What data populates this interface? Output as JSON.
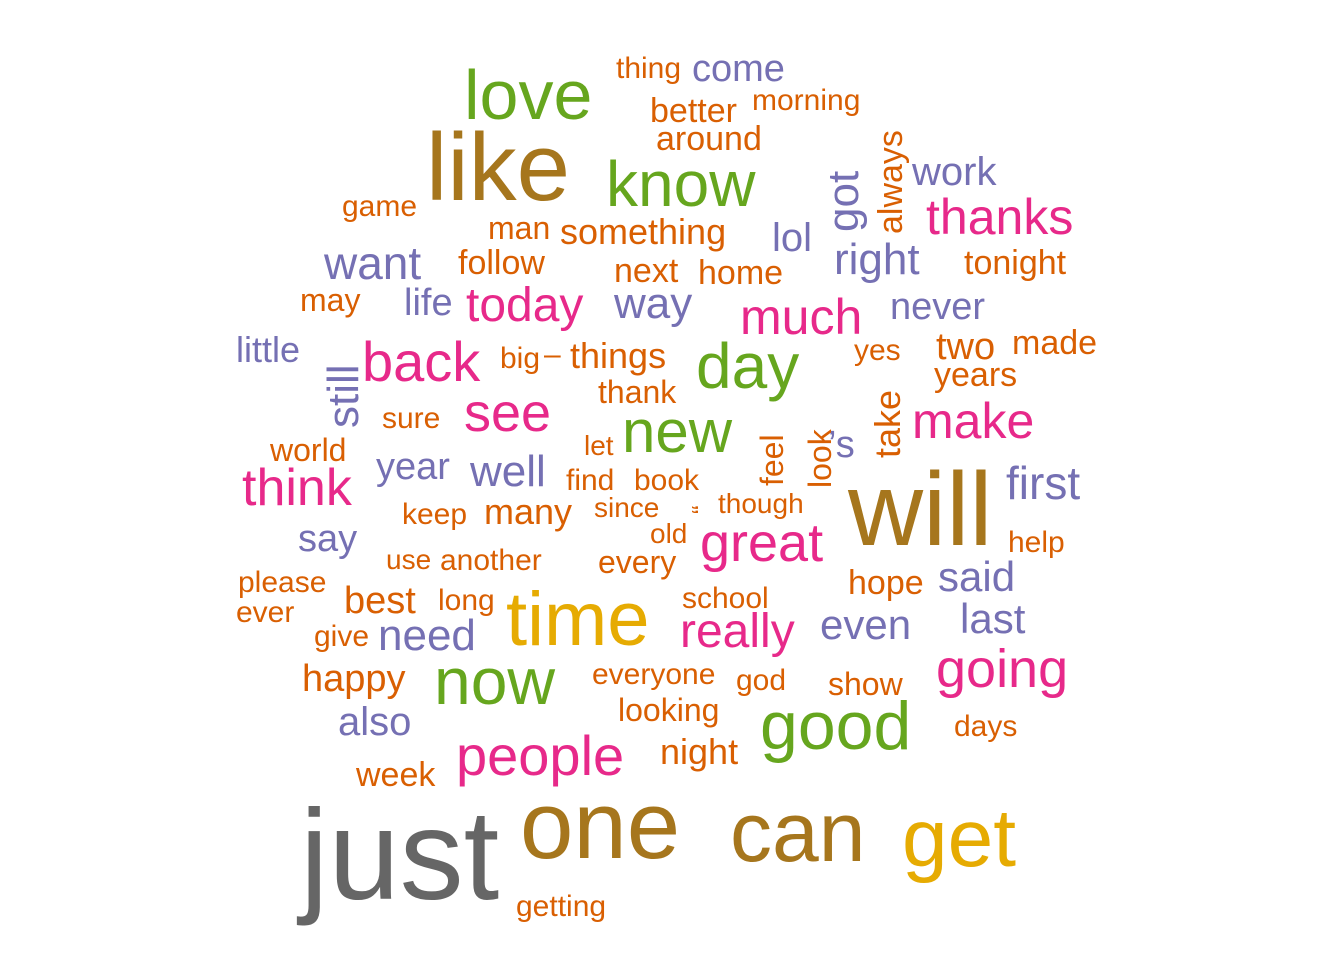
{
  "colors": {
    "orange": "#D95F02",
    "purple": "#7570B3",
    "pink": "#E7298A",
    "green": "#66A61E",
    "gold": "#E6AB02",
    "brown": "#A6761D",
    "gray": "#666666"
  },
  "words": [
    {
      "text": "just",
      "color": "gray"
    },
    {
      "text": "one",
      "color": "brown"
    },
    {
      "text": "can",
      "color": "brown"
    },
    {
      "text": "get",
      "color": "gold"
    },
    {
      "text": "will",
      "color": "brown"
    },
    {
      "text": "like",
      "color": "brown"
    },
    {
      "text": "time",
      "color": "gold"
    },
    {
      "text": "love",
      "color": "green"
    },
    {
      "text": "know",
      "color": "green"
    },
    {
      "text": "good",
      "color": "green"
    },
    {
      "text": "now",
      "color": "green"
    },
    {
      "text": "day",
      "color": "green"
    },
    {
      "text": "new",
      "color": "green"
    },
    {
      "text": "great",
      "color": "pink"
    },
    {
      "text": "people",
      "color": "pink"
    },
    {
      "text": "really",
      "color": "pink"
    },
    {
      "text": "going",
      "color": "pink"
    },
    {
      "text": "thanks",
      "color": "pink"
    },
    {
      "text": "see",
      "color": "pink"
    },
    {
      "text": "back",
      "color": "pink"
    },
    {
      "text": "make",
      "color": "pink"
    },
    {
      "text": "think",
      "color": "pink"
    },
    {
      "text": "today",
      "color": "pink"
    },
    {
      "text": "much",
      "color": "pink"
    },
    {
      "text": "want",
      "color": "purple"
    },
    {
      "text": "right",
      "color": "purple"
    },
    {
      "text": "way",
      "color": "purple"
    },
    {
      "text": "first",
      "color": "purple"
    },
    {
      "text": "well",
      "color": "purple"
    },
    {
      "text": "need",
      "color": "purple"
    },
    {
      "text": "even",
      "color": "purple"
    },
    {
      "text": "last",
      "color": "purple"
    },
    {
      "text": "also",
      "color": "purple"
    },
    {
      "text": "said",
      "color": "purple"
    },
    {
      "text": "work",
      "color": "purple"
    },
    {
      "text": "come",
      "color": "purple"
    },
    {
      "text": "lol",
      "color": "purple"
    },
    {
      "text": "never",
      "color": "purple"
    },
    {
      "text": "life",
      "color": "purple"
    },
    {
      "text": "year",
      "color": "purple"
    },
    {
      "text": "say",
      "color": "purple"
    },
    {
      "text": "little",
      "color": "purple"
    },
    {
      "text": "’s",
      "color": "purple"
    },
    {
      "text": "got",
      "color": "purple"
    },
    {
      "text": "still",
      "color": "purple"
    },
    {
      "text": "things",
      "color": "orange"
    },
    {
      "text": "many",
      "color": "orange"
    },
    {
      "text": "night",
      "color": "orange"
    },
    {
      "text": "happy",
      "color": "orange"
    },
    {
      "text": "best",
      "color": "orange"
    },
    {
      "text": "two",
      "color": "orange"
    },
    {
      "text": "home",
      "color": "orange"
    },
    {
      "text": "something",
      "color": "orange"
    },
    {
      "text": "follow",
      "color": "orange"
    },
    {
      "text": "next",
      "color": "orange"
    },
    {
      "text": "tonight",
      "color": "orange"
    },
    {
      "text": "better",
      "color": "orange"
    },
    {
      "text": "around",
      "color": "orange"
    },
    {
      "text": "thing",
      "color": "orange"
    },
    {
      "text": "morning",
      "color": "orange"
    },
    {
      "text": "game",
      "color": "orange"
    },
    {
      "text": "man",
      "color": "orange"
    },
    {
      "text": "may",
      "color": "orange"
    },
    {
      "text": "made",
      "color": "orange"
    },
    {
      "text": "years",
      "color": "orange"
    },
    {
      "text": "yes",
      "color": "orange"
    },
    {
      "text": "big",
      "color": "orange"
    },
    {
      "text": "–",
      "color": "orange"
    },
    {
      "text": "thank",
      "color": "orange"
    },
    {
      "text": "sure",
      "color": "orange"
    },
    {
      "text": "world",
      "color": "orange"
    },
    {
      "text": "let",
      "color": "orange"
    },
    {
      "text": "find",
      "color": "orange"
    },
    {
      "text": "book",
      "color": "orange"
    },
    {
      "text": "keep",
      "color": "orange"
    },
    {
      "text": "since",
      "color": "orange"
    },
    {
      "text": "though",
      "color": "orange"
    },
    {
      "text": "old",
      "color": "orange"
    },
    {
      "text": "help",
      "color": "orange"
    },
    {
      "text": "use",
      "color": "orange"
    },
    {
      "text": "another",
      "color": "orange"
    },
    {
      "text": "every",
      "color": "orange"
    },
    {
      "text": "please",
      "color": "orange"
    },
    {
      "text": "ever",
      "color": "orange"
    },
    {
      "text": "long",
      "color": "orange"
    },
    {
      "text": "school",
      "color": "orange"
    },
    {
      "text": "hope",
      "color": "orange"
    },
    {
      "text": "give",
      "color": "orange"
    },
    {
      "text": "everyone",
      "color": "orange"
    },
    {
      "text": "god",
      "color": "orange"
    },
    {
      "text": "show",
      "color": "orange"
    },
    {
      "text": "looking",
      "color": "orange"
    },
    {
      "text": "days",
      "color": "orange"
    },
    {
      "text": "week",
      "color": "orange"
    },
    {
      "text": "getting",
      "color": "orange"
    },
    {
      "text": "always",
      "color": "orange"
    },
    {
      "text": "take",
      "color": "orange"
    },
    {
      "text": "feel",
      "color": "orange"
    },
    {
      "text": "look",
      "color": "orange"
    },
    {
      "text": "“",
      "color": "orange"
    }
  ]
}
